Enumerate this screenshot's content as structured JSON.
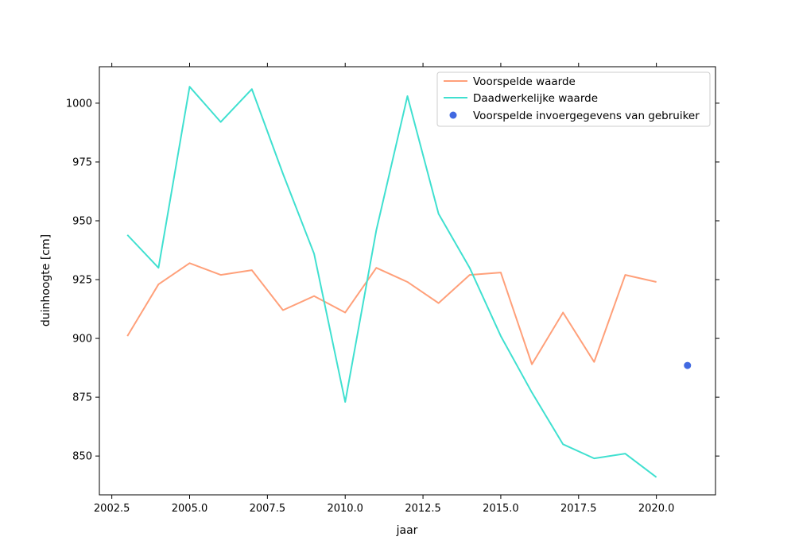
{
  "chart_data": {
    "type": "line",
    "title": "",
    "xlabel": "jaar",
    "ylabel": "duinhoogte [cm]",
    "xlim": [
      2002.1,
      2021.9
    ],
    "ylim": [
      833.5,
      1015.5
    ],
    "xticks": [
      2002.5,
      2005.0,
      2007.5,
      2010.0,
      2012.5,
      2015.0,
      2017.5,
      2020.0
    ],
    "xtick_labels": [
      "2002.5",
      "2005.0",
      "2007.5",
      "2010.0",
      "2012.5",
      "2015.0",
      "2017.5",
      "2020.0"
    ],
    "yticks": [
      850,
      875,
      900,
      925,
      950,
      975,
      1000
    ],
    "ytick_labels": [
      "850",
      "875",
      "900",
      "925",
      "950",
      "975",
      "1000"
    ],
    "grid": false,
    "legend_position": "top-right",
    "series": [
      {
        "name": "Voorspelde waarde",
        "kind": "line",
        "color": "#ffa07a",
        "x": [
          2003,
          2004,
          2005,
          2006,
          2007,
          2008,
          2009,
          2010,
          2011,
          2012,
          2013,
          2014,
          2015,
          2016,
          2017,
          2018,
          2019,
          2020
        ],
        "y": [
          901,
          923,
          932,
          927,
          929,
          912,
          918,
          911,
          930,
          924,
          915,
          927,
          928,
          889,
          911,
          890,
          927,
          924
        ]
      },
      {
        "name": "Daadwerkelijke waarde",
        "kind": "line",
        "color": "#40e0d0",
        "x": [
          2003,
          2004,
          2005,
          2006,
          2007,
          2008,
          2009,
          2010,
          2011,
          2012,
          2013,
          2014,
          2015,
          2016,
          2017,
          2018,
          2019,
          2020
        ],
        "y": [
          944,
          930,
          1007,
          992,
          1006,
          970,
          936,
          873,
          946,
          1003,
          953,
          930,
          901,
          877,
          855,
          849,
          851,
          841
        ]
      },
      {
        "name": "Voorspelde invoergegevens van gebruiker",
        "kind": "scatter",
        "color": "#4169e1",
        "x": [
          2021
        ],
        "y": [
          888.5
        ]
      }
    ]
  }
}
